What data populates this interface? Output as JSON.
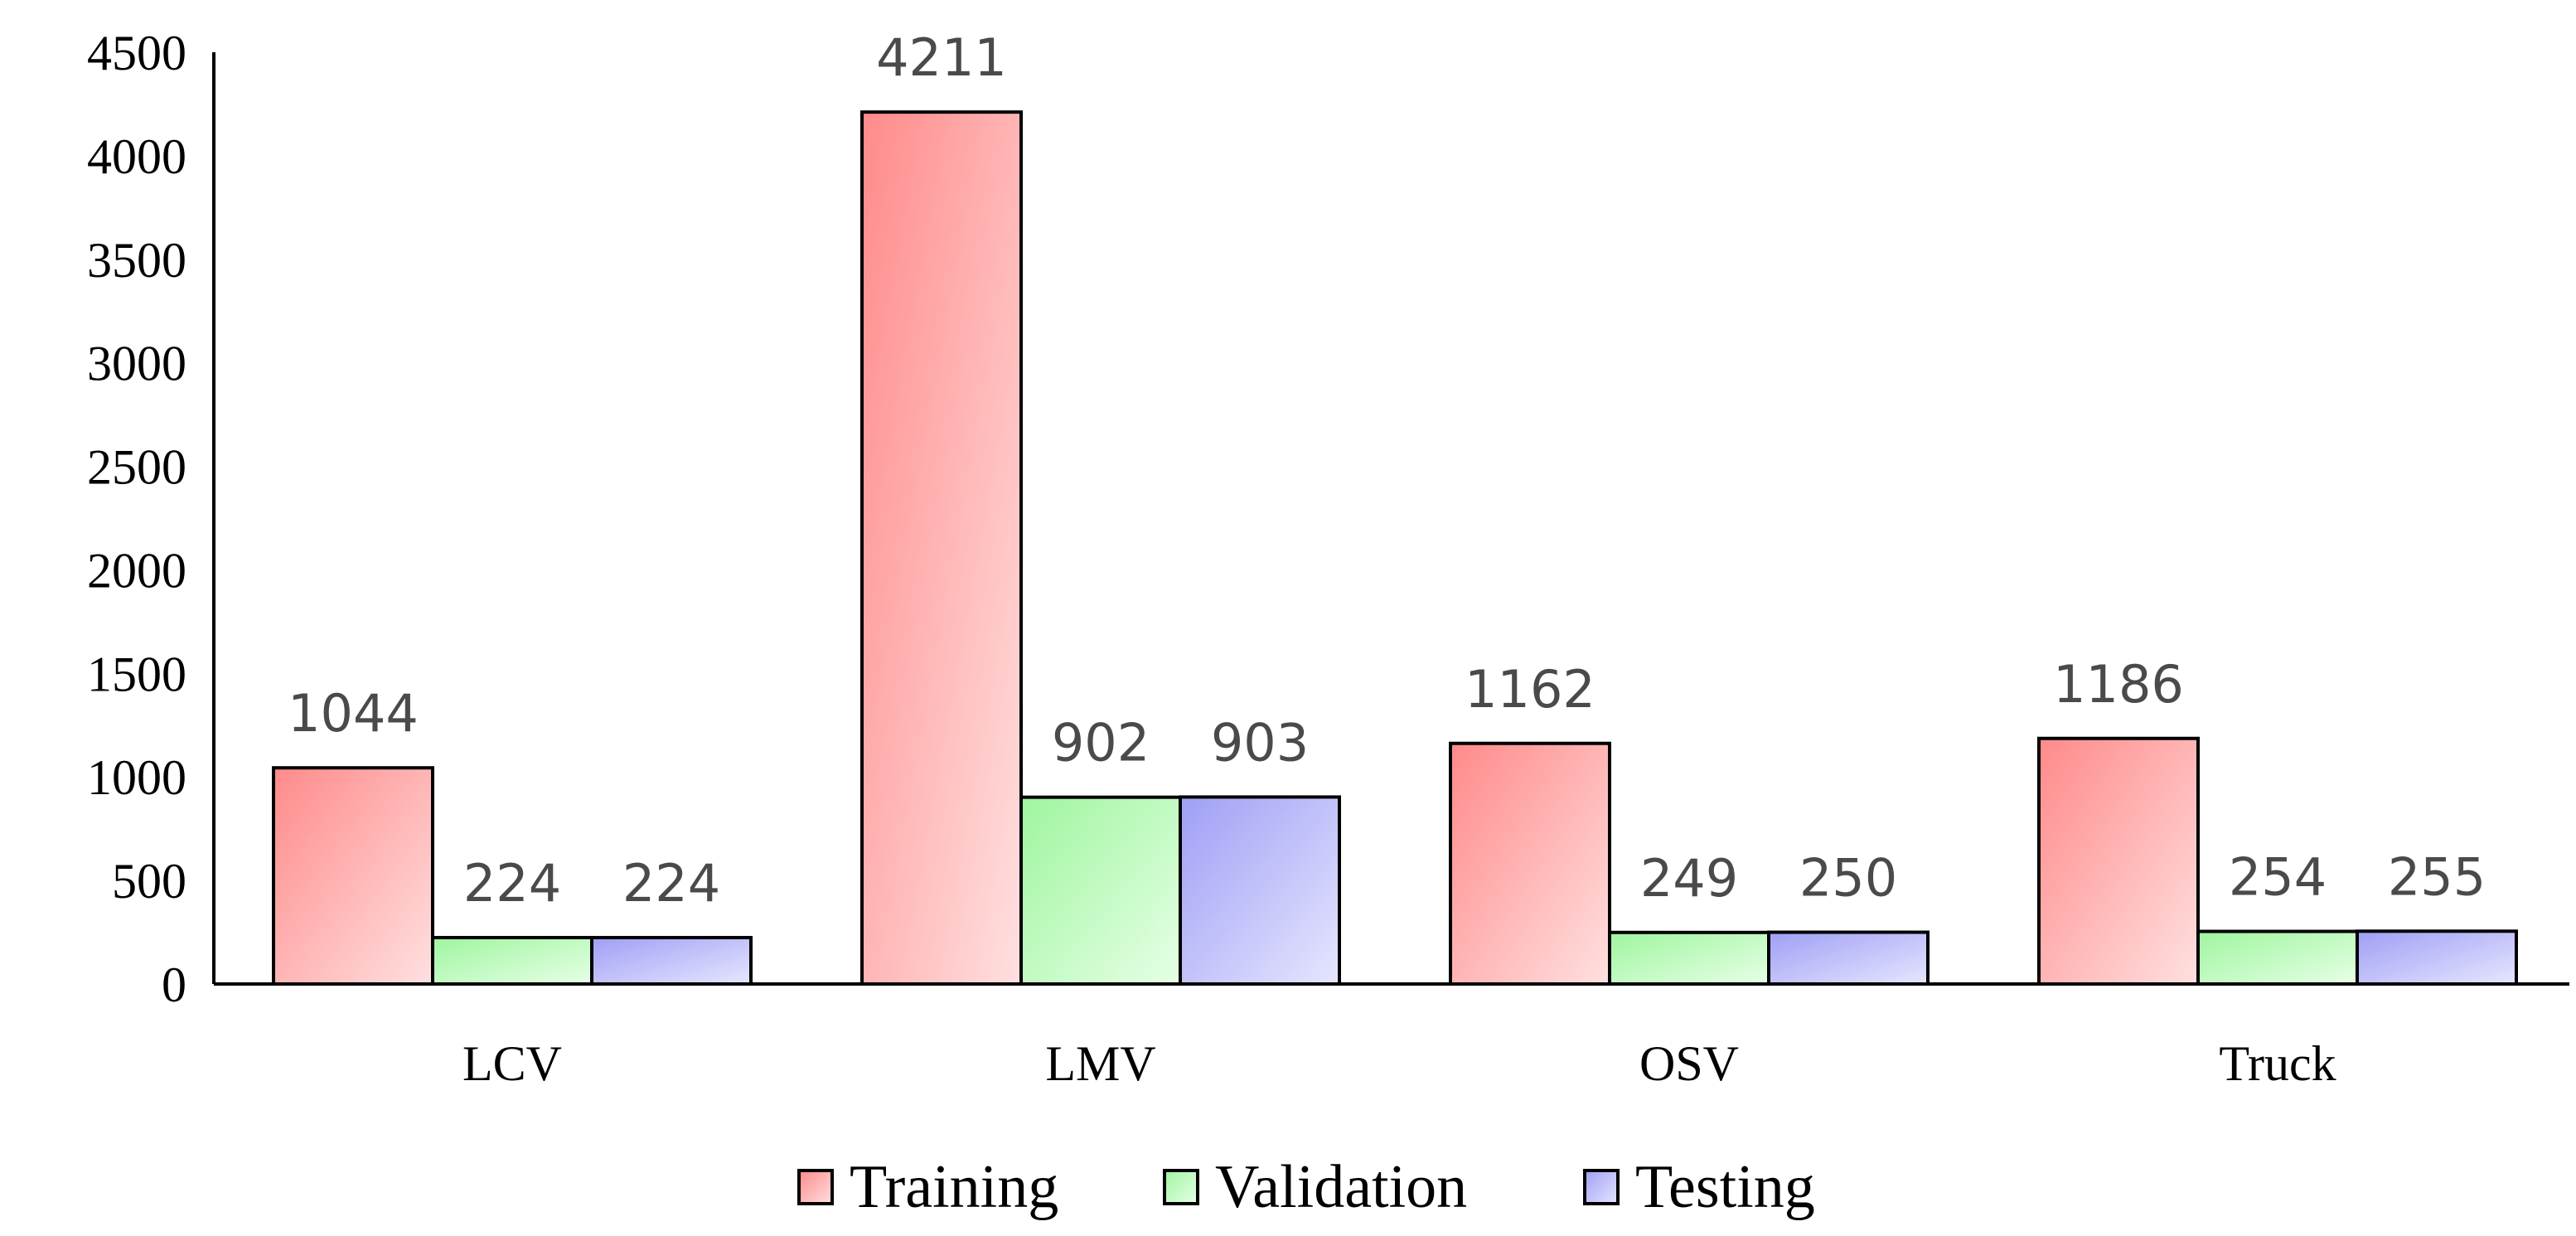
{
  "chart_data": {
    "type": "bar",
    "title": "",
    "xlabel": "",
    "ylabel": "",
    "categories": [
      "LCV",
      "LMV",
      "OSV",
      "Truck"
    ],
    "series": [
      {
        "name": "Training",
        "values": [
          1044,
          4211,
          1162,
          1186
        ],
        "color_start": "#ff8a8a",
        "color_end": "#ffe0e0"
      },
      {
        "name": "Validation",
        "values": [
          224,
          902,
          249,
          254
        ],
        "color_start": "#9ff59f",
        "color_end": "#e6ffe6"
      },
      {
        "name": "Testing",
        "values": [
          224,
          903,
          250,
          255
        ],
        "color_start": "#9f9ff5",
        "color_end": "#e6e6ff"
      }
    ],
    "ylim": [
      0,
      4500
    ],
    "yticks": [
      0,
      500,
      1000,
      1500,
      2000,
      2500,
      3000,
      3500,
      4000,
      4500
    ],
    "data_labels": true,
    "grid": false,
    "legend": "bottom"
  }
}
